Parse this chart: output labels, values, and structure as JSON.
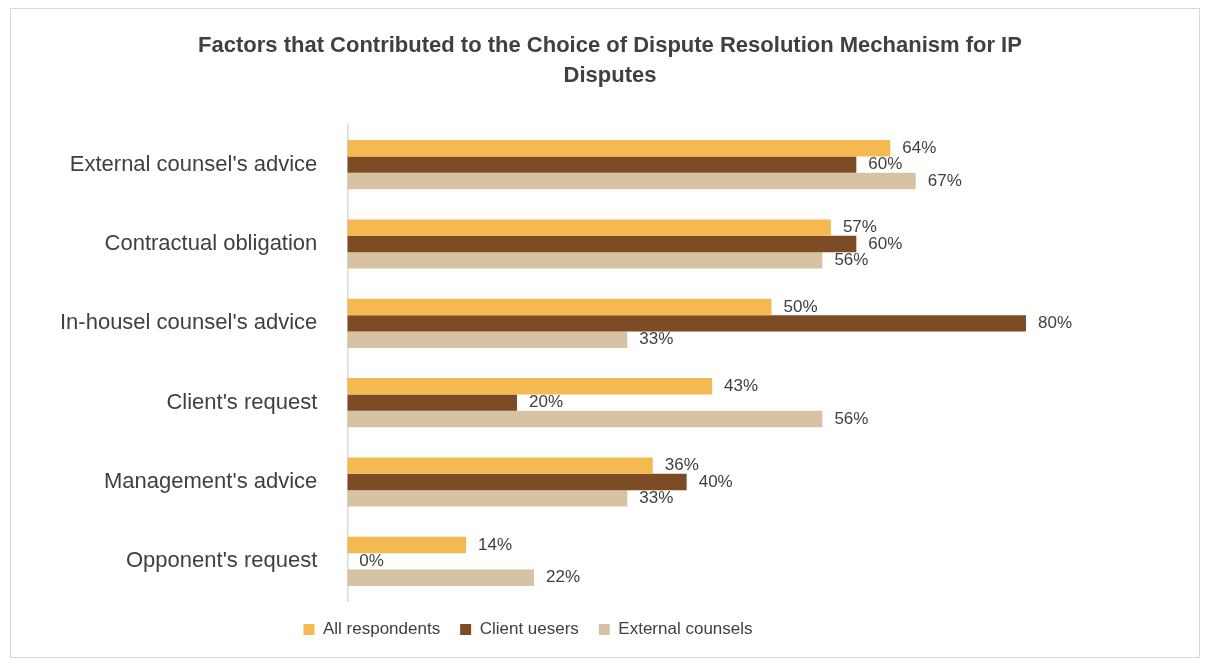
{
  "chart_data": {
    "type": "bar",
    "orientation": "horizontal",
    "title": "Factors that Contributed to the Choice of Dispute Resolution Mechanism for IP Disputes",
    "categories": [
      "External counsel's advice",
      "Contractual obligation",
      "In-housel counsel's advice",
      "Client's request",
      "Management's advice",
      "Opponent's request"
    ],
    "series": [
      {
        "name": "All respondents",
        "color": "#f4b950",
        "values": [
          64,
          57,
          50,
          43,
          36,
          14
        ],
        "value_labels": [
          "64%",
          "57%",
          "50%",
          "43%",
          "36%",
          "14%"
        ]
      },
      {
        "name": "Client uesers",
        "color": "#7d4b24",
        "values": [
          60,
          60,
          80,
          20,
          40,
          0
        ],
        "value_labels": [
          "60%",
          "60%",
          "80%",
          "20%",
          "40%",
          "0%"
        ]
      },
      {
        "name": "External counsels",
        "color": "#d7c3a3",
        "values": [
          67,
          56,
          33,
          56,
          33,
          22
        ],
        "value_labels": [
          "67%",
          "56%",
          "33%",
          "56%",
          "33%",
          "22%"
        ]
      }
    ],
    "legend": "bottom"
  }
}
